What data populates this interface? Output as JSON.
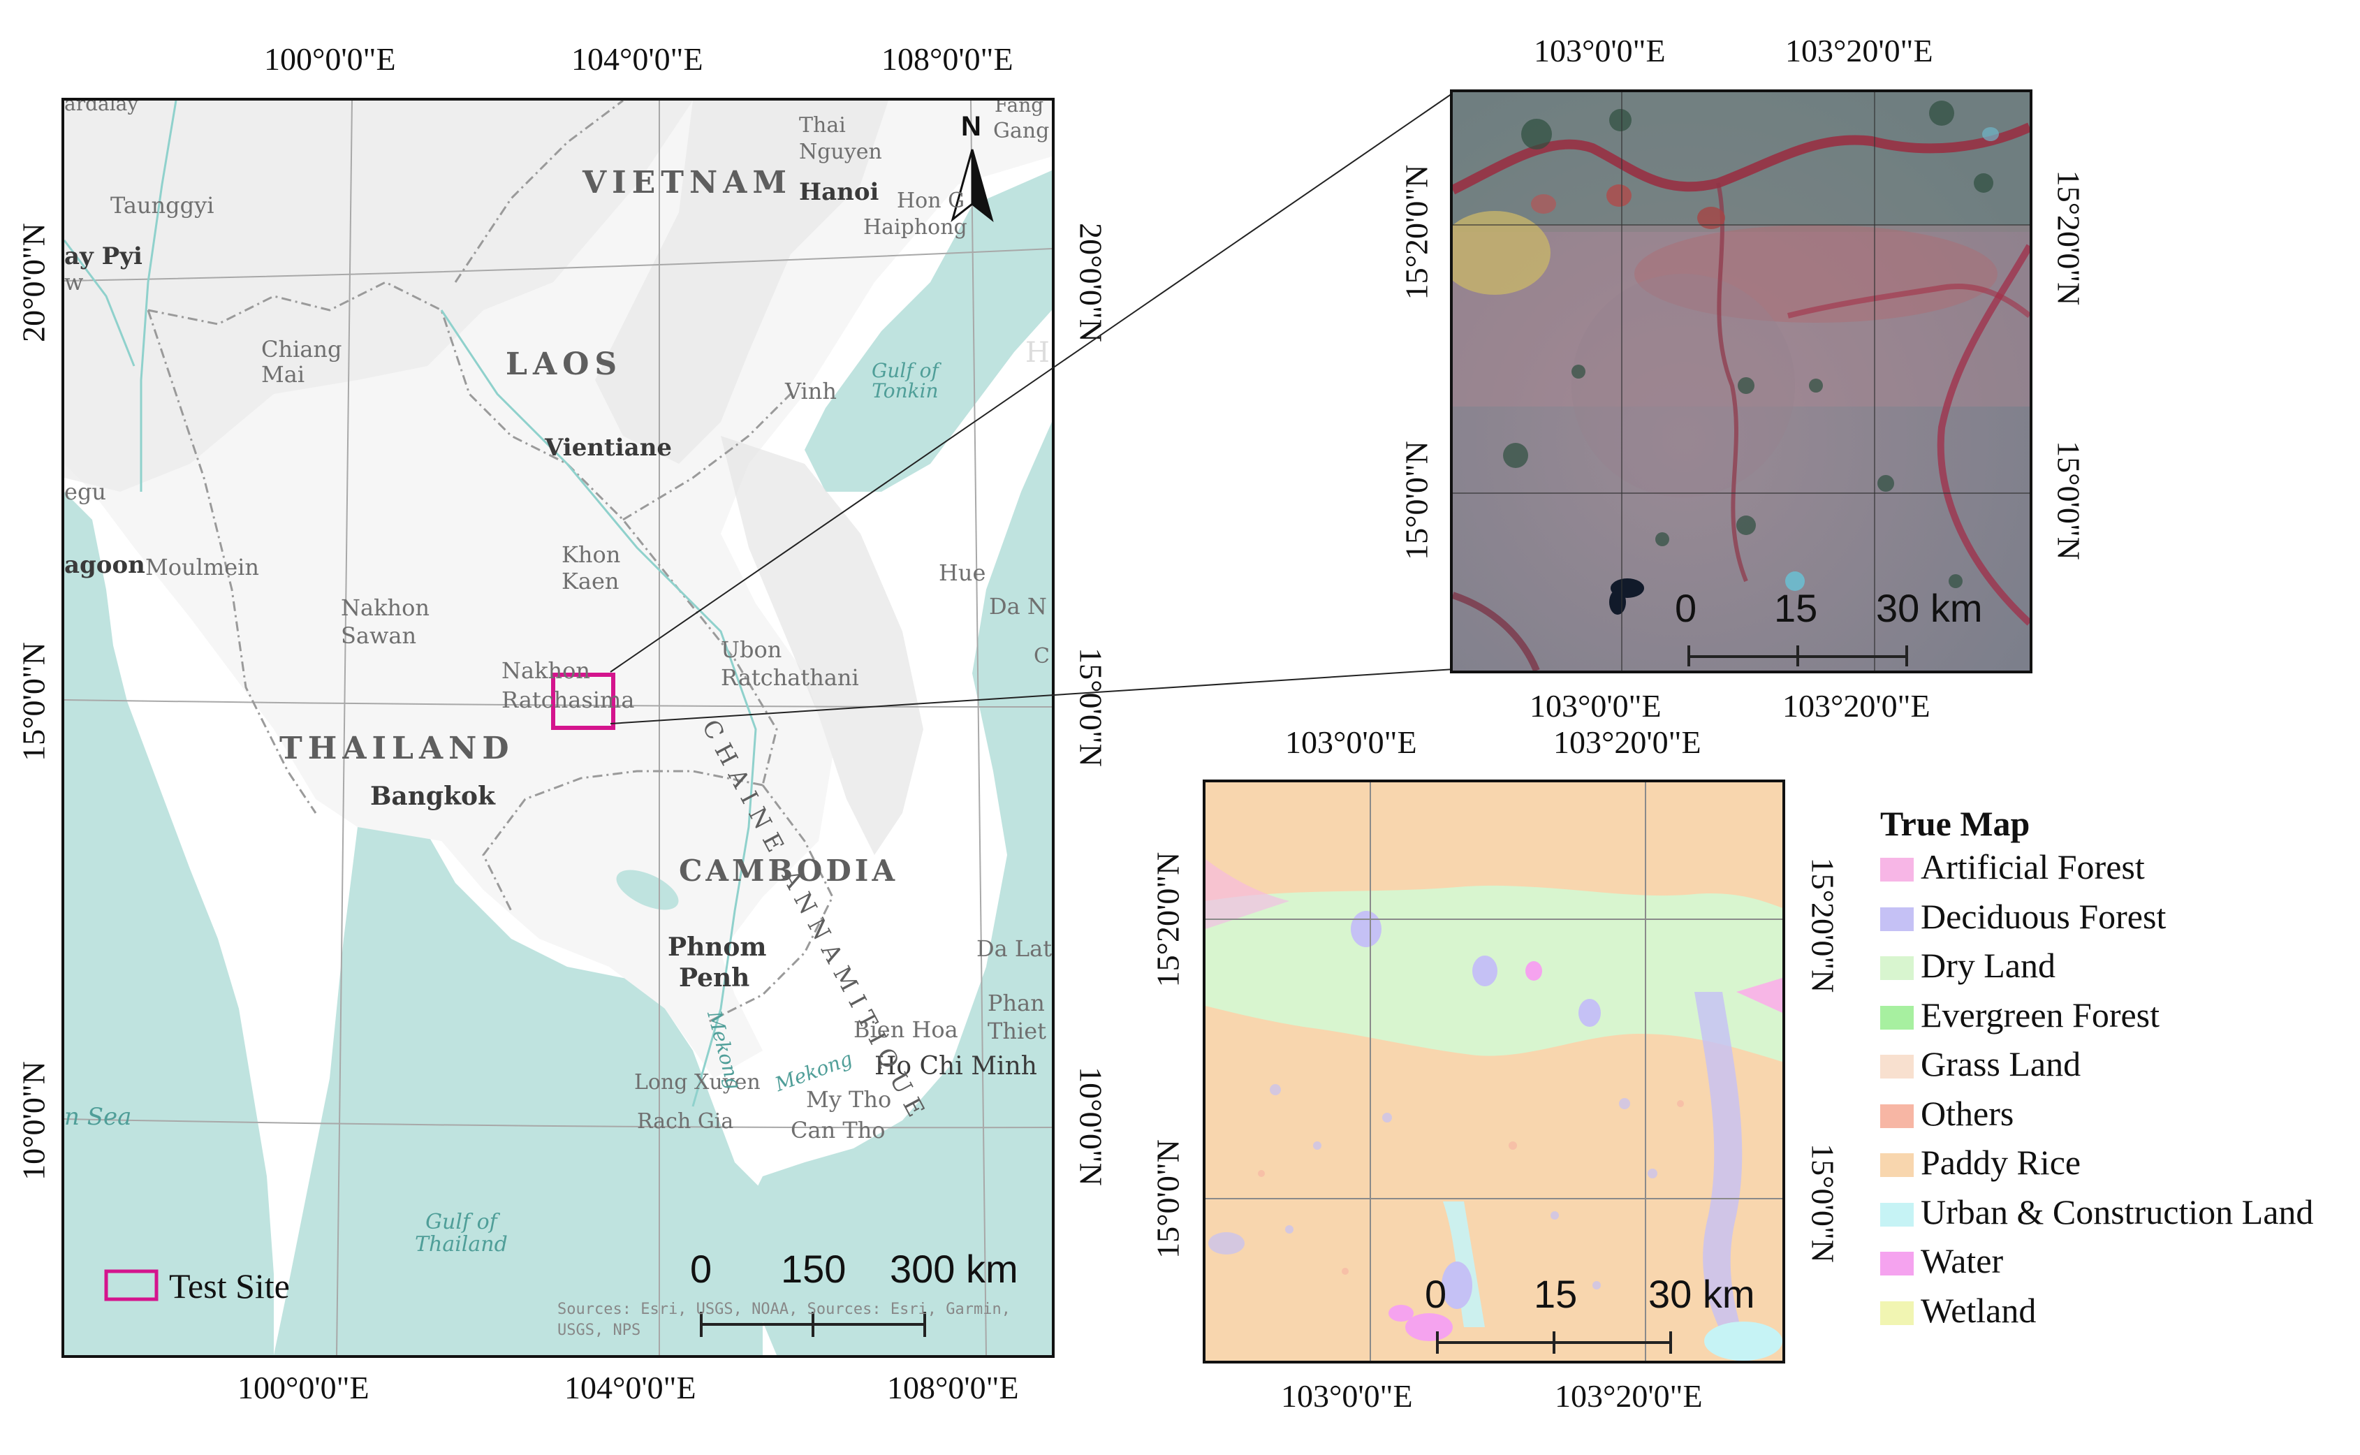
{
  "overview_map": {
    "top_ticks": [
      "100°0'0\"E",
      "104°0'0\"E",
      "108°0'0\"E"
    ],
    "bottom_ticks": [
      "100°0'0\"E",
      "104°0'0\"E",
      "108°0'0\"E"
    ],
    "left_ticks": [
      "20°0'0\"N",
      "15°0'0\"N",
      "10°0'0\"N"
    ],
    "right_ticks": [
      "20°0'0\"N",
      "15°0'0\"N",
      "10°0'0\"N"
    ],
    "countries": [
      "VIETNAM",
      "LAOS",
      "THAILAND",
      "CAMBODIA"
    ],
    "capitals": [
      "Hanoi",
      "Vientiane",
      "Bangkok",
      "Phnom",
      "Penh",
      "Ho Chi Minh"
    ],
    "places": {
      "p1": "ardalay",
      "p2": "Taunggyi",
      "p3": "ay Pyi",
      "p4": "w",
      "p5": "Chiang",
      "p6": "Mai",
      "p7": "egu",
      "p8": "agoon",
      "p9": "Moulmein",
      "p10": "Nakhon",
      "p11": "Sawan",
      "p12": "Khon",
      "p13": "Kaen",
      "p14": "Nakhon",
      "p15": "Ratchasima",
      "p16": "Ubon",
      "p17": "Ratchathani",
      "p18": "Thai",
      "p19": "Nguyen",
      "p20": "Hon G",
      "p21": "Haiphong",
      "p22": "Vinh",
      "p23": "Hue",
      "p24": "Da N",
      "p25": "Da Lat",
      "p26": "Phan",
      "p27": "Thiet",
      "p28": "Bien Hoa",
      "p29": "Long Xuyen",
      "p30": "My Tho",
      "p31": "Rach Gia",
      "p32": "Can Tho",
      "p33": "Fang",
      "p34": "Gang",
      "p35": "H",
      "p36": "C"
    },
    "chaine": "CHAINE ANNAMITIQUE",
    "water_labels": {
      "gulf_tonkin_1": "Gulf of",
      "gulf_tonkin_2": "Tonkin",
      "gulf_thailand_1": "Gulf of",
      "gulf_thailand_2": "Thailand",
      "mekong1": "Mekong",
      "mekong2": "Mekong",
      "sea": "n Sea"
    },
    "north_label": "N",
    "legend_label": "Test Site",
    "sources": "Sources: Esri, USGS, NOAA, Sources: Esri, Garmin, USGS, NPS",
    "scale": {
      "labels": [
        "0",
        "150",
        "300 km"
      ]
    }
  },
  "satellite_map": {
    "top_ticks": [
      "103°0'0\"E",
      "103°20'0\"E"
    ],
    "bottom_ticks": [
      "103°0'0\"E",
      "103°20'0\"E"
    ],
    "left_ticks": [
      "15°20'0\"N",
      "15°0'0\"N"
    ],
    "right_ticks": [
      "15°20'0\"N",
      "15°0'0\"N"
    ],
    "scale": {
      "labels": [
        "0",
        "15",
        "30 km"
      ]
    }
  },
  "classification_map": {
    "top_ticks": [
      "103°0'0\"E",
      "103°20'0\"E"
    ],
    "bottom_ticks": [
      "103°0'0\"E",
      "103°20'0\"E"
    ],
    "left_ticks": [
      "15°20'0\"N",
      "15°0'0\"N"
    ],
    "right_ticks": [
      "15°20'0\"N",
      "15°0'0\"N"
    ],
    "scale": {
      "labels": [
        "0",
        "15",
        "30 km"
      ]
    }
  },
  "legend": {
    "title": "True Map",
    "items": [
      {
        "label": "Artificial Forest",
        "color": "#f7b6e6"
      },
      {
        "label": "Deciduous Forest",
        "color": "#c5c1f5"
      },
      {
        "label": "Dry Land",
        "color": "#d8f5cf"
      },
      {
        "label": "Evergreen Forest",
        "color": "#a7f0a0"
      },
      {
        "label": "Grass Land",
        "color": "#f8e0cf"
      },
      {
        "label": "Others",
        "color": "#f7b6a4"
      },
      {
        "label": "Paddy Rice",
        "color": "#f8d6ae"
      },
      {
        "label": "Urban & Construction Land",
        "color": "#c6f3f5"
      },
      {
        "label": "Water",
        "color": "#f5a3ef"
      },
      {
        "label": "Wetland",
        "color": "#f1f5b2"
      }
    ]
  }
}
